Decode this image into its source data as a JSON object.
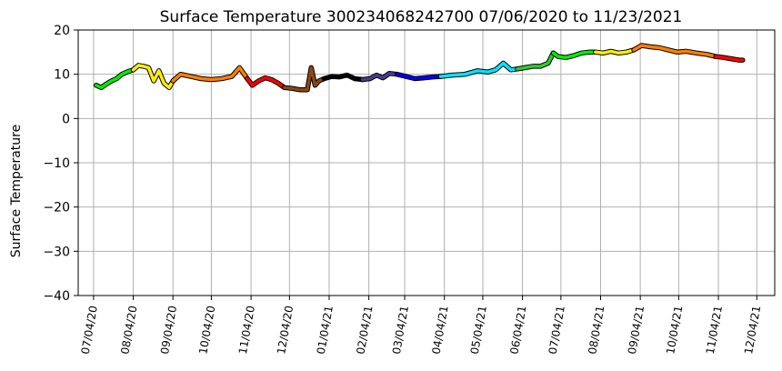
{
  "chart_data": {
    "type": "line",
    "title": "Surface Temperature 300234068242700  07/06/2020 to 11/23/2021",
    "xlabel": "",
    "ylabel": "Surface Temperature",
    "ylim": [
      -40,
      20
    ],
    "yticks": [
      "20",
      "10",
      "0",
      "−10",
      "−20",
      "−30",
      "−40"
    ],
    "ytick_values": [
      20,
      10,
      0,
      -10,
      -20,
      -30,
      -40
    ],
    "xlim": [
      "2020-06-22",
      "2021-12-18"
    ],
    "xticks": [
      "07/04/20",
      "08/04/20",
      "09/04/20",
      "10/04/20",
      "11/04/20",
      "12/04/20",
      "01/04/21",
      "02/04/21",
      "03/04/21",
      "04/04/21",
      "05/04/21",
      "06/04/21",
      "07/04/21",
      "08/04/21",
      "09/04/21",
      "10/04/21",
      "11/04/21",
      "12/04/21"
    ],
    "xtick_dates": [
      "2020-07-04",
      "2020-08-04",
      "2020-09-04",
      "2020-10-04",
      "2020-11-04",
      "2020-12-04",
      "2021-01-04",
      "2021-02-04",
      "2021-03-04",
      "2021-04-04",
      "2021-05-04",
      "2021-06-04",
      "2021-07-04",
      "2021-08-04",
      "2021-09-04",
      "2021-10-04",
      "2021-11-04",
      "2021-12-04"
    ],
    "grid": true,
    "series": [
      {
        "color": "#00ee00",
        "x": [
          "2020-07-06",
          "2020-07-10",
          "2020-07-14",
          "2020-07-18",
          "2020-07-22",
          "2020-07-26",
          "2020-07-30",
          "2020-08-04"
        ],
        "y": [
          7.5,
          7.0,
          7.8,
          8.5,
          9.0,
          10.0,
          10.5,
          11.0
        ]
      },
      {
        "color": "#ffee00",
        "x": [
          "2020-08-04",
          "2020-08-08",
          "2020-08-12",
          "2020-08-16",
          "2020-08-20",
          "2020-08-24",
          "2020-08-28",
          "2020-09-01",
          "2020-09-04"
        ],
        "y": [
          11.0,
          12.0,
          11.8,
          11.5,
          8.5,
          10.8,
          8.0,
          7.0,
          8.5
        ]
      },
      {
        "color": "#ff7f00",
        "x": [
          "2020-09-04",
          "2020-09-10",
          "2020-09-18",
          "2020-09-26",
          "2020-10-04",
          "2020-10-12",
          "2020-10-20",
          "2020-10-26",
          "2020-11-01"
        ],
        "y": [
          8.5,
          10.0,
          9.5,
          9.0,
          8.8,
          9.0,
          9.5,
          11.5,
          9.0
        ]
      },
      {
        "color": "#ff0000",
        "x": [
          "2020-11-01",
          "2020-11-05",
          "2020-11-10",
          "2020-11-15",
          "2020-11-20",
          "2020-11-25",
          "2020-11-30"
        ],
        "y": [
          9.0,
          7.5,
          8.5,
          9.2,
          8.8,
          8.0,
          7.0
        ]
      },
      {
        "color": "#8b4513",
        "x": [
          "2020-11-30",
          "2020-12-06",
          "2020-12-12",
          "2020-12-18",
          "2020-12-21",
          "2020-12-24",
          "2020-12-27",
          "2020-12-31"
        ],
        "y": [
          7.0,
          6.8,
          6.5,
          6.5,
          11.5,
          7.5,
          8.5,
          9.0
        ]
      },
      {
        "color": "#000000",
        "x": [
          "2020-12-31",
          "2021-01-06",
          "2021-01-12",
          "2021-01-18",
          "2021-01-24",
          "2021-01-30"
        ],
        "y": [
          9.0,
          9.5,
          9.4,
          9.8,
          9.0,
          8.8
        ]
      },
      {
        "color": "#483d8b",
        "x": [
          "2021-01-30",
          "2021-02-05",
          "2021-02-10",
          "2021-02-15",
          "2021-02-20",
          "2021-02-26"
        ],
        "y": [
          8.8,
          9.0,
          9.8,
          9.2,
          10.2,
          10.0
        ]
      },
      {
        "color": "#0000ee",
        "x": [
          "2021-02-26",
          "2021-03-05",
          "2021-03-12",
          "2021-03-19",
          "2021-03-26",
          "2021-04-01"
        ],
        "y": [
          10.0,
          9.5,
          9.0,
          9.2,
          9.4,
          9.5
        ]
      },
      {
        "color": "#00e5ff",
        "x": [
          "2021-04-01",
          "2021-04-10",
          "2021-04-20",
          "2021-04-30",
          "2021-05-08",
          "2021-05-14",
          "2021-05-20",
          "2021-05-26",
          "2021-05-31"
        ],
        "y": [
          9.5,
          9.8,
          10.0,
          10.8,
          10.5,
          11.0,
          12.5,
          11.0,
          11.2
        ]
      },
      {
        "color": "#2ecc2e",
        "x": [
          "2021-05-31",
          "2021-06-06",
          "2021-06-12",
          "2021-06-18",
          "2021-06-24",
          "2021-06-28"
        ],
        "y": [
          11.2,
          11.5,
          11.8,
          11.8,
          12.5,
          14.8
        ]
      },
      {
        "color": "#00ee00",
        "x": [
          "2021-06-28",
          "2021-07-02",
          "2021-07-08",
          "2021-07-14",
          "2021-07-20",
          "2021-07-26",
          "2021-07-31"
        ],
        "y": [
          14.8,
          14.0,
          13.8,
          14.2,
          14.8,
          15.0,
          15.0
        ]
      },
      {
        "color": "#ffee00",
        "x": [
          "2021-07-31",
          "2021-08-06",
          "2021-08-12",
          "2021-08-18",
          "2021-08-24",
          "2021-08-30"
        ],
        "y": [
          15.0,
          14.8,
          15.2,
          14.8,
          15.0,
          15.5
        ]
      },
      {
        "color": "#ff7f00",
        "x": [
          "2021-08-30",
          "2021-09-05",
          "2021-09-12",
          "2021-09-19",
          "2021-09-26",
          "2021-10-03",
          "2021-10-10",
          "2021-10-18",
          "2021-10-26",
          "2021-11-02"
        ],
        "y": [
          15.5,
          16.5,
          16.2,
          16.0,
          15.5,
          15.0,
          15.2,
          14.8,
          14.5,
          14.0
        ]
      },
      {
        "color": "#ff0000",
        "x": [
          "2021-11-02",
          "2021-11-08",
          "2021-11-14",
          "2021-11-20",
          "2021-11-23"
        ],
        "y": [
          14.0,
          13.8,
          13.5,
          13.2,
          13.2
        ]
      }
    ]
  }
}
